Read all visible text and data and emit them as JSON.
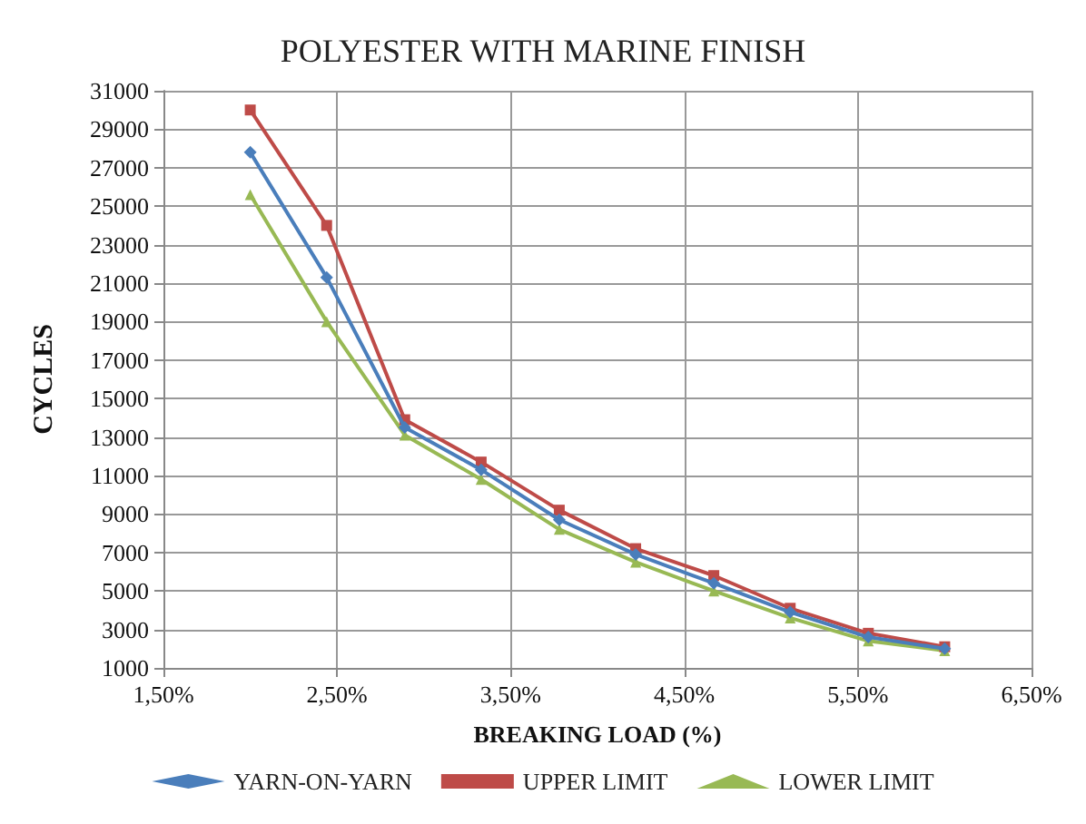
{
  "chart_data": {
    "type": "line",
    "title": "POLYESTER WITH MARINE FINISH",
    "xlabel": "BREAKING LOAD (%)",
    "ylabel": "CYCLES",
    "x": [
      2.0,
      2.44,
      2.89,
      3.33,
      3.78,
      4.22,
      4.67,
      5.11,
      5.56,
      6.0
    ],
    "series": [
      {
        "name": "YARN-ON-YARN",
        "color": "#4a7ebb",
        "marker": "diamond",
        "values": [
          27800,
          21300,
          13500,
          11300,
          8700,
          6900,
          5400,
          3900,
          2600,
          2000
        ]
      },
      {
        "name": "UPPER LIMIT",
        "color": "#be4b48",
        "marker": "square",
        "values": [
          30000,
          24000,
          13900,
          11700,
          9200,
          7200,
          5800,
          4100,
          2800,
          2100
        ]
      },
      {
        "name": "LOWER LIMIT",
        "color": "#98b954",
        "marker": "triangle",
        "values": [
          25600,
          19000,
          13100,
          10800,
          8200,
          6500,
          5000,
          3600,
          2400,
          1900
        ]
      }
    ],
    "xlim": [
      1.5,
      6.5
    ],
    "xticks": [
      {
        "value": 1.5,
        "label": "1,50%"
      },
      {
        "value": 2.5,
        "label": "2,50%"
      },
      {
        "value": 3.5,
        "label": "3,50%"
      },
      {
        "value": 4.5,
        "label": "4,50%"
      },
      {
        "value": 5.5,
        "label": "5,50%"
      },
      {
        "value": 6.5,
        "label": "6,50%"
      }
    ],
    "ylim": [
      1000,
      31000
    ],
    "yticks": [
      1000,
      3000,
      5000,
      7000,
      9000,
      11000,
      13000,
      15000,
      17000,
      19000,
      21000,
      23000,
      25000,
      27000,
      29000,
      31000
    ],
    "grid": true,
    "legend": "bottom",
    "line_style": "solid"
  }
}
